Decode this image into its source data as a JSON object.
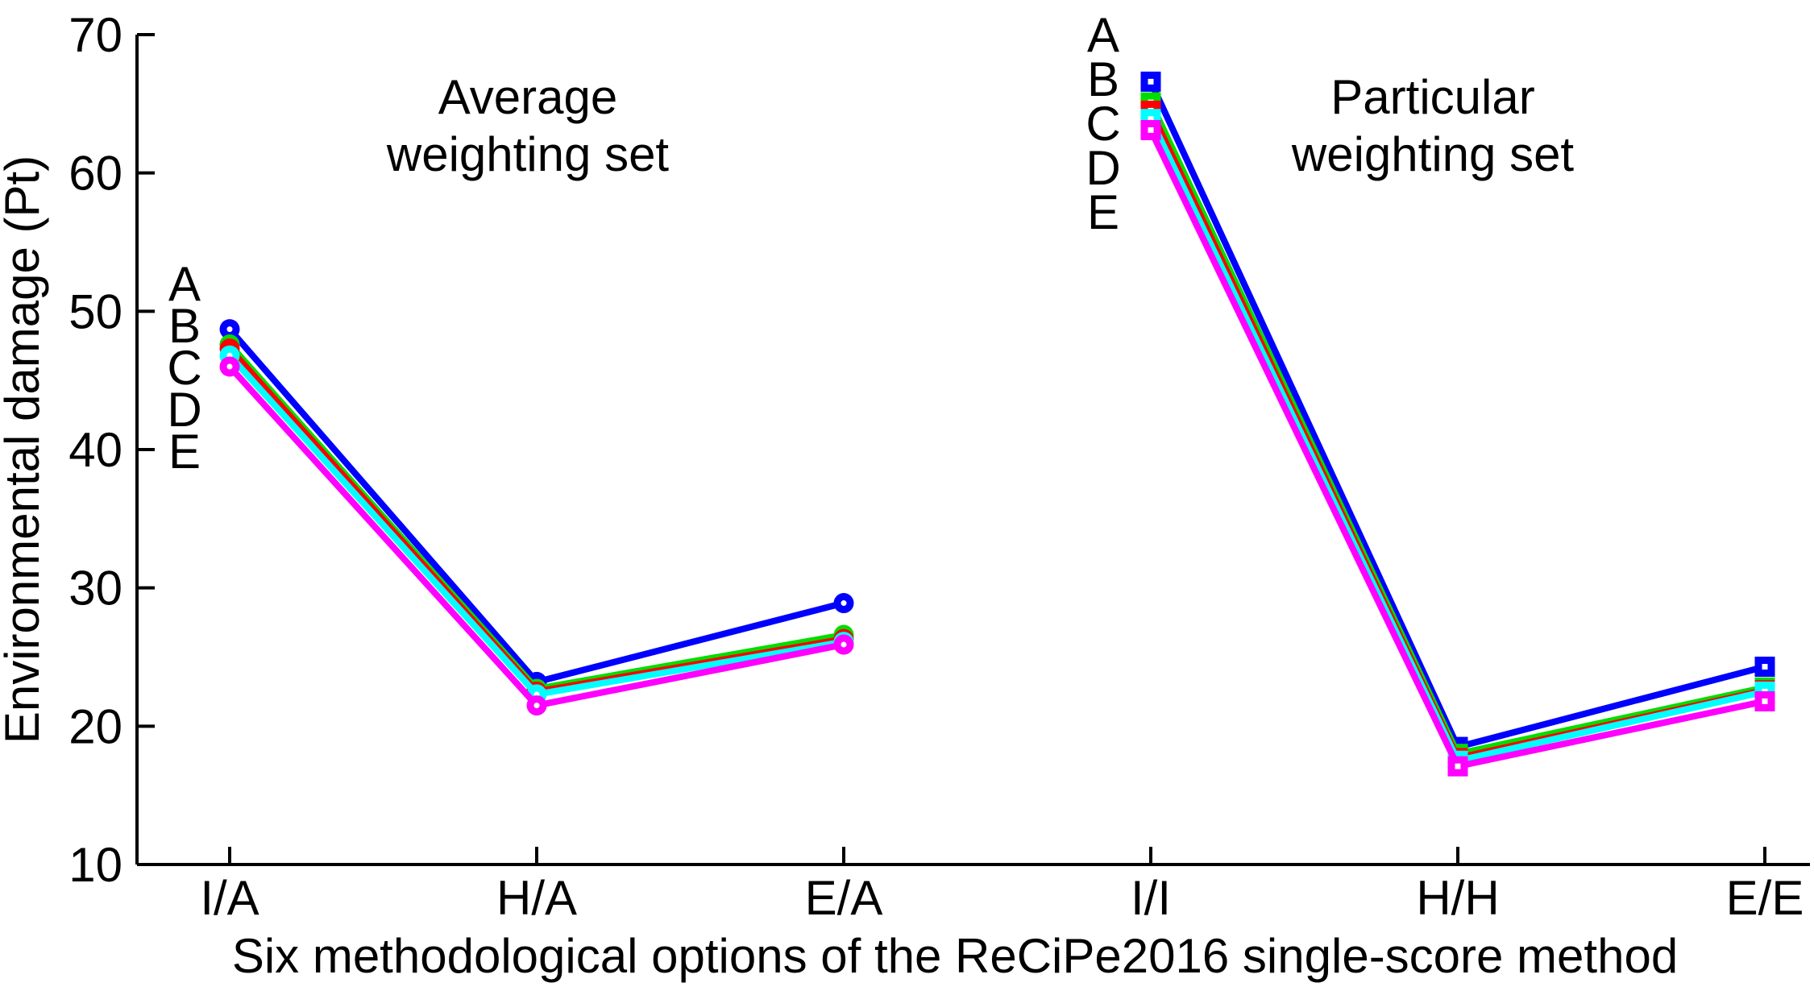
{
  "chart_data": {
    "type": "line",
    "ylabel": "Environmental damage (Pt)",
    "xlabel": "Six methodological options of the ReCiPe2016 single-score method",
    "ylim": [
      10,
      70
    ],
    "yticks": [
      70,
      60,
      50,
      40,
      30,
      20,
      10
    ],
    "grid": "off",
    "legend_position": "inline-left-of-first-point-of-each-group",
    "legend_entries": [
      "A",
      "B",
      "C",
      "D",
      "E"
    ],
    "groups": [
      {
        "title_lines": [
          "Average",
          "weighting set"
        ],
        "categories": [
          "I/A",
          "H/A",
          "E/A"
        ],
        "marker": "circle",
        "series": [
          {
            "name": "A",
            "color": "#0000FF",
            "values": [
              48.7,
              23.2,
              28.9
            ]
          },
          {
            "name": "B",
            "color": "#00DD00",
            "values": [
              47.6,
              22.7,
              26.6
            ]
          },
          {
            "name": "C",
            "color": "#FF0000",
            "values": [
              47.3,
              22.5,
              26.3
            ]
          },
          {
            "name": "D",
            "color": "#00FFFF",
            "values": [
              46.8,
              22.3,
              26.1
            ]
          },
          {
            "name": "E",
            "color": "#FF00FF",
            "values": [
              46.0,
              21.5,
              25.9
            ]
          }
        ]
      },
      {
        "title_lines": [
          "Particular",
          "weighting set"
        ],
        "categories": [
          "I/I",
          "H/H",
          "E/E"
        ],
        "marker": "square",
        "series": [
          {
            "name": "A",
            "color": "#0000FF",
            "values": [
              66.6,
              18.5,
              24.3
            ]
          },
          {
            "name": "B",
            "color": "#00DD00",
            "values": [
              65.1,
              18.0,
              22.8
            ]
          },
          {
            "name": "C",
            "color": "#FF0000",
            "values": [
              64.5,
              17.7,
              22.6
            ]
          },
          {
            "name": "D",
            "color": "#00FFFF",
            "values": [
              63.9,
              17.5,
              22.5
            ]
          },
          {
            "name": "E",
            "color": "#FF00FF",
            "values": [
              63.1,
              17.1,
              21.8
            ]
          }
        ]
      }
    ]
  }
}
